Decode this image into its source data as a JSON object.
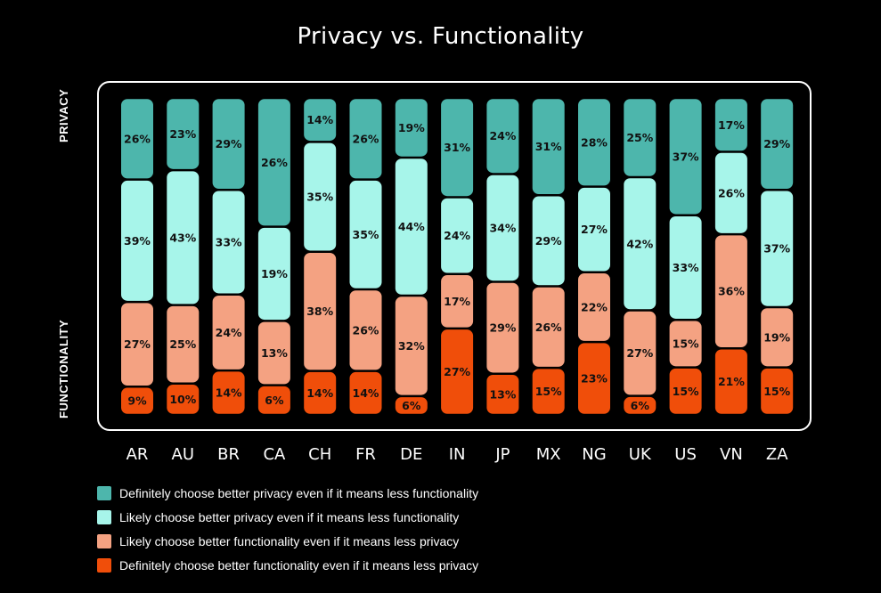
{
  "chart_data": {
    "type": "bar",
    "stacked": true,
    "percent": true,
    "title": "Privacy vs. Functionality",
    "axis_labels": {
      "top": "PRIVACY",
      "bottom": "FUNCTIONALITY"
    },
    "categories": [
      "AR",
      "AU",
      "BR",
      "CA",
      "CH",
      "FR",
      "DE",
      "IN",
      "JP",
      "MX",
      "NG",
      "UK",
      "US",
      "VN",
      "ZA"
    ],
    "series": [
      {
        "name": "Definitely choose better privacy even if it means less functionality",
        "color": "#4db6ac",
        "values": [
          26,
          23,
          29,
          26,
          14,
          26,
          19,
          31,
          24,
          31,
          28,
          25,
          37,
          17,
          29
        ]
      },
      {
        "name": "Likely choose better privacy even if it means less functionality",
        "color": "#a7f5ea",
        "values": [
          39,
          43,
          33,
          19,
          35,
          35,
          44,
          24,
          34,
          29,
          27,
          42,
          33,
          26,
          37
        ]
      },
      {
        "name": "Likely choose better functionality even if it means less privacy",
        "color": "#f4a282",
        "values": [
          27,
          25,
          24,
          13,
          38,
          26,
          32,
          17,
          29,
          26,
          22,
          27,
          15,
          36,
          19
        ]
      },
      {
        "name": "Definitely choose better functionality even if it means less privacy",
        "color": "#f04e0a",
        "values": [
          9,
          10,
          14,
          6,
          14,
          14,
          6,
          27,
          13,
          15,
          23,
          6,
          15,
          21,
          15
        ]
      }
    ],
    "ylim": [
      0,
      100
    ],
    "legend_position": "bottom-left"
  }
}
